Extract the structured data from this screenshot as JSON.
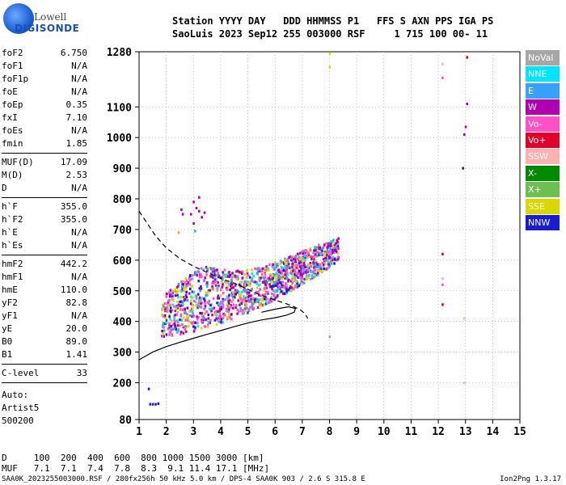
{
  "logo": {
    "top_text": "Lowell",
    "bottom_text": "DIGISONDE"
  },
  "header": {
    "line1": "Station YYYY DAY   DDD HHMMSS P1   FFS S AXN PPS IGA PS",
    "line2": "SaoLuis 2023 Sep12 255 003000 RSF     1 715 100 00- 11"
  },
  "params": [
    {
      "name": "foF2",
      "value": "6.750"
    },
    {
      "name": "foF1",
      "value": "N/A"
    },
    {
      "name": "foF1p",
      "value": "N/A"
    },
    {
      "name": "foE",
      "value": "N/A"
    },
    {
      "name": "foEp",
      "value": "0.35"
    },
    {
      "name": "fxI",
      "value": "7.10"
    },
    {
      "name": "foEs",
      "value": "N/A"
    },
    {
      "name": "fmin",
      "value": "1.85"
    },
    {
      "name": "sep"
    },
    {
      "name": "MUF(D)",
      "value": "17.09"
    },
    {
      "name": "M(D)",
      "value": "2.53"
    },
    {
      "name": "D",
      "value": "N/A"
    },
    {
      "name": "sep"
    },
    {
      "name": "h`F",
      "value": "355.0"
    },
    {
      "name": "h`F2",
      "value": "355.0"
    },
    {
      "name": "h`E",
      "value": "N/A"
    },
    {
      "name": "h`Es",
      "value": "N/A"
    },
    {
      "name": "sep"
    },
    {
      "name": "hmF2",
      "value": "442.2"
    },
    {
      "name": "hmF1",
      "value": "N/A"
    },
    {
      "name": "hmE",
      "value": "110.0"
    },
    {
      "name": "yF2",
      "value": "82.8"
    },
    {
      "name": "yF1",
      "value": "N/A"
    },
    {
      "name": "yE",
      "value": "20.0"
    },
    {
      "name": "B0",
      "value": "89.0"
    },
    {
      "name": "B1",
      "value": "1.41"
    },
    {
      "name": "sep"
    },
    {
      "name": "C-level",
      "value": "33"
    },
    {
      "name": "sep"
    }
  ],
  "auto": {
    "line1": "Auto:",
    "line2": "Artist5",
    "line3": "500200"
  },
  "muf_table": {
    "line1": "D     100  200  400  600  800 1000 1500 3000 [km]",
    "line2": "MUF   7.1  7.1  7.4  7.8  8.3  9.1 11.4 17.1 [MHz]"
  },
  "footer": {
    "left": "SAA0K_2023255003000.RSF / 280fx256h 50 kHz 5.0 km / DPS-4 SAA0K 903 / 2.6 S 315.8 E",
    "right": "Ion2Png 1.3.17"
  },
  "legend": [
    {
      "label": "NoVal",
      "color": "#a6a6a6"
    },
    {
      "label": "NNE",
      "color": "#00e5ff"
    },
    {
      "label": "E",
      "color": "#3aa0ff"
    },
    {
      "label": "W",
      "color": "#b000b0"
    },
    {
      "label": "Vo-",
      "color": "#ff50c8"
    },
    {
      "label": "Vo+",
      "color": "#e0002a"
    },
    {
      "label": "SSW",
      "color": "#ffb0b0"
    },
    {
      "label": "X-",
      "color": "#008a00"
    },
    {
      "label": "X+",
      "color": "#6cbf50"
    },
    {
      "label": "SSE",
      "color": "#d8d800"
    },
    {
      "label": "NNW",
      "color": "#1a1ad0"
    }
  ],
  "chart_data": {
    "type": "scatter",
    "xlim": [
      1,
      15
    ],
    "ylim": [
      80,
      1280
    ],
    "xticks": [
      1,
      2,
      3,
      4,
      5,
      6,
      7,
      8,
      9,
      10,
      11,
      12,
      13,
      14,
      15
    ],
    "yticks": [
      80,
      200,
      300,
      400,
      500,
      600,
      700,
      800,
      900,
      1000,
      1100,
      1280
    ],
    "grid": "dotted",
    "trace_cluster": {
      "f_start": 1.8,
      "f_end": 8.3,
      "h_low_start": 355,
      "h_low_end": 600,
      "h_high_start": 470,
      "h_high_end": 720,
      "dominant_colors": [
        "#b000b0",
        "#ff50c8",
        "#d8d800",
        "#1a1ad0",
        "#3aa0ff",
        "#00e5ff"
      ]
    },
    "isolated_points": [
      {
        "x": 1.35,
        "y": 180,
        "color": "#1a1ad0"
      },
      {
        "x": 1.6,
        "y": 130,
        "color": "#1a1ad0"
      },
      {
        "x": 1.5,
        "y": 130,
        "color": "#1a1ad0"
      },
      {
        "x": 1.7,
        "y": 132,
        "color": "#1a1ad0"
      },
      {
        "x": 1.4,
        "y": 130,
        "color": "#1a1ad0"
      },
      {
        "x": 2.9,
        "y": 750,
        "color": "#b000b0"
      },
      {
        "x": 3.0,
        "y": 790,
        "color": "#b000b0"
      },
      {
        "x": 3.1,
        "y": 770,
        "color": "#b000b0"
      },
      {
        "x": 3.2,
        "y": 760,
        "color": "#b000b0"
      },
      {
        "x": 3.3,
        "y": 740,
        "color": "#b000b0"
      },
      {
        "x": 3.4,
        "y": 755,
        "color": "#b000b0"
      },
      {
        "x": 3.0,
        "y": 720,
        "color": "#b000b0"
      },
      {
        "x": 3.2,
        "y": 805,
        "color": "#b000b0"
      },
      {
        "x": 2.55,
        "y": 765,
        "color": "#b000b0"
      },
      {
        "x": 2.6,
        "y": 750,
        "color": "#b000b0"
      },
      {
        "x": 3.05,
        "y": 695,
        "color": "#3aa0ff"
      },
      {
        "x": 2.45,
        "y": 690,
        "color": "#ff9a30"
      },
      {
        "x": 8.0,
        "y": 1275,
        "color": "#d8d800"
      },
      {
        "x": 8.0,
        "y": 1230,
        "color": "#d8d800"
      },
      {
        "x": 12.15,
        "y": 1240,
        "color": "#ffb0b0"
      },
      {
        "x": 12.15,
        "y": 1195,
        "color": "#ff50c8"
      },
      {
        "x": 12.15,
        "y": 620,
        "color": "#e0002a"
      },
      {
        "x": 12.15,
        "y": 540,
        "color": "#ffb0b0"
      },
      {
        "x": 12.15,
        "y": 520,
        "color": "#ff50c8"
      },
      {
        "x": 12.15,
        "y": 455,
        "color": "#e0002a"
      },
      {
        "x": 13.05,
        "y": 1262,
        "color": "#e0002a"
      },
      {
        "x": 13.05,
        "y": 1110,
        "color": "#b000b0"
      },
      {
        "x": 13.0,
        "y": 1035,
        "color": "#b000b0"
      },
      {
        "x": 12.95,
        "y": 1010,
        "color": "#b000b0"
      },
      {
        "x": 12.9,
        "y": 900,
        "color": "#1a1ad0"
      },
      {
        "x": 12.95,
        "y": 410,
        "color": "#ffb0b0"
      },
      {
        "x": 12.95,
        "y": 200,
        "color": "#ffb0b0"
      },
      {
        "x": 8.0,
        "y": 350,
        "color": "#a6a6a6"
      }
    ],
    "profile_solid": [
      [
        1.0,
        275
      ],
      [
        1.5,
        300
      ],
      [
        2.0,
        318
      ],
      [
        2.5,
        332
      ],
      [
        3.0,
        345
      ],
      [
        3.5,
        358
      ],
      [
        4.0,
        370
      ],
      [
        4.5,
        383
      ],
      [
        5.0,
        395
      ],
      [
        5.5,
        405
      ],
      [
        6.0,
        412
      ],
      [
        6.4,
        420
      ],
      [
        6.7,
        430
      ],
      [
        6.75,
        442
      ],
      [
        6.5,
        448
      ],
      [
        6.0,
        440
      ],
      [
        5.5,
        430
      ]
    ],
    "profile_dashed": [
      [
        1.0,
        760
      ],
      [
        1.3,
        720
      ],
      [
        1.6,
        680
      ],
      [
        2.0,
        640
      ],
      [
        2.5,
        605
      ],
      [
        3.0,
        580
      ],
      [
        3.5,
        560
      ],
      [
        4.0,
        540
      ],
      [
        4.5,
        525
      ],
      [
        5.0,
        505
      ],
      [
        5.5,
        485
      ],
      [
        6.0,
        470
      ],
      [
        6.5,
        455
      ],
      [
        6.9,
        440
      ],
      [
        7.1,
        425
      ],
      [
        7.2,
        410
      ]
    ]
  }
}
